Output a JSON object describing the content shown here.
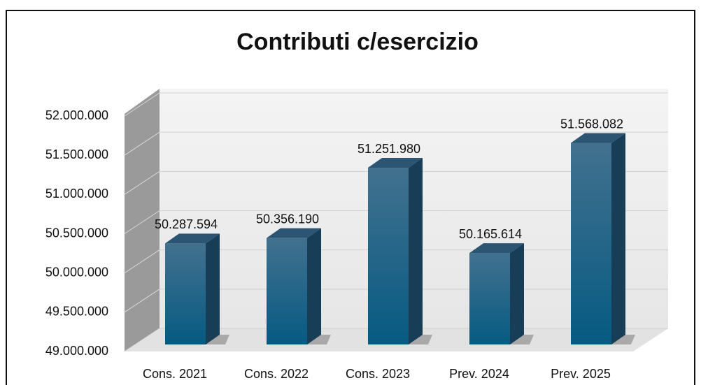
{
  "chart_data": {
    "type": "bar3d",
    "title": "Contributi c/esercizio",
    "categories": [
      "Cons. 2021",
      "Cons. 2022",
      "Cons. 2023",
      "Prev. 2024",
      "Prev. 2025"
    ],
    "values": [
      50287594,
      50356190,
      51251980,
      50165614,
      51568082
    ],
    "value_labels": [
      "50.287.594",
      "50.356.190",
      "51.251.980",
      "50.165.614",
      "51.568.082"
    ],
    "color": "#175f86",
    "ylim": [
      49000000,
      52000000
    ],
    "yticks": [
      {
        "value": 49000000,
        "label": "49.000.000"
      },
      {
        "value": 49500000,
        "label": "49.500.000"
      },
      {
        "value": 50000000,
        "label": "50.000.000"
      },
      {
        "value": 50500000,
        "label": "50.500.000"
      },
      {
        "value": 51000000,
        "label": "51.000.000"
      },
      {
        "value": 51500000,
        "label": "51.500.000"
      },
      {
        "value": 52000000,
        "label": "52.000.000"
      }
    ],
    "grid": true
  }
}
